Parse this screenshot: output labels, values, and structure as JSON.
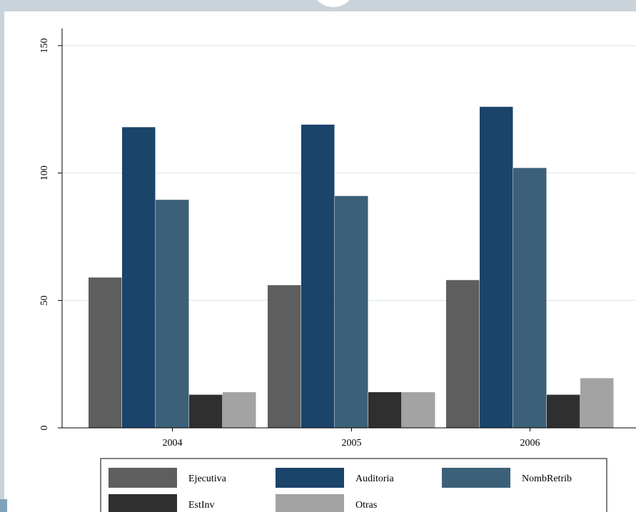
{
  "chart_data": {
    "type": "bar",
    "categories": [
      "2004",
      "2005",
      "2006"
    ],
    "series": [
      {
        "name": "Ejecutiva",
        "color": "#5e5e5e",
        "values": [
          59,
          56,
          58
        ]
      },
      {
        "name": "Auditoria",
        "color": "#1b446b",
        "values": [
          118,
          119,
          126
        ]
      },
      {
        "name": "NombRetrib",
        "color": "#3d6079",
        "values": [
          89.5,
          91,
          102
        ]
      },
      {
        "name": "EstInv",
        "color": "#2f2f2f",
        "values": [
          13,
          14,
          13
        ]
      },
      {
        "name": "Otras",
        "color": "#a3a3a3",
        "values": [
          14,
          14,
          19.5
        ]
      }
    ],
    "ylim": [
      0,
      150
    ],
    "yticks": [
      0,
      50,
      100,
      150
    ],
    "grid": true,
    "legend_position": "bottom",
    "title": "",
    "xlabel": "",
    "ylabel": ""
  }
}
